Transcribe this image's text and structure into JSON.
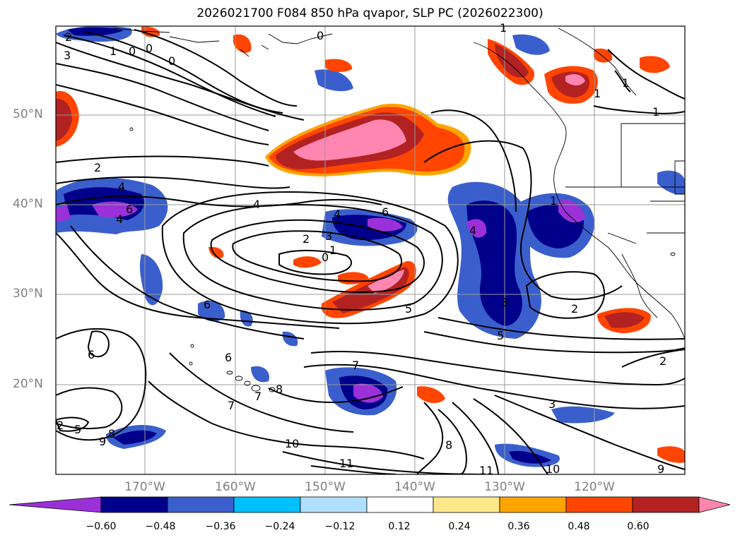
{
  "title": "2026021700 F084 850 hPa qvapor, SLP PC (2026022300)",
  "latitude_labels": [
    "50°N",
    "40°N",
    "30°N",
    "20°N"
  ],
  "longitude_labels": [
    "170°W",
    "160°W",
    "150°W",
    "140°W",
    "130°W",
    "120°W"
  ],
  "colorbar": {
    "ticks": [
      "−0.60",
      "−0.48",
      "−0.36",
      "−0.24",
      "−0.12",
      "0.12",
      "0.24",
      "0.36",
      "0.48",
      "0.60"
    ],
    "colors": [
      "#9b30d9",
      "#00008b",
      "#3a5fcd",
      "#00bfff",
      "#b0e0ff",
      "#ffffff",
      "#ffe88a",
      "#ffa500",
      "#ff4500",
      "#b22222",
      "#ff86b0"
    ]
  },
  "contour_labels": [
    "2",
    "3",
    "1",
    "0",
    "0",
    "1",
    "0",
    "0",
    "1",
    "1",
    "1",
    "2",
    "4",
    "6",
    "4",
    "4",
    "6",
    "2",
    "3",
    "1",
    "0",
    "4",
    "4",
    "1",
    "2",
    "5",
    "6",
    "3",
    "5",
    "2",
    "7",
    "6",
    "7",
    "8",
    "6",
    "7",
    "5",
    "8",
    "9",
    "10",
    "11",
    "8",
    "11",
    "10",
    "9",
    "3",
    "2"
  ],
  "map_features": [
    "North America coastline",
    "Hawaiian Islands",
    "Aleutian Islands",
    "Baja California"
  ]
}
